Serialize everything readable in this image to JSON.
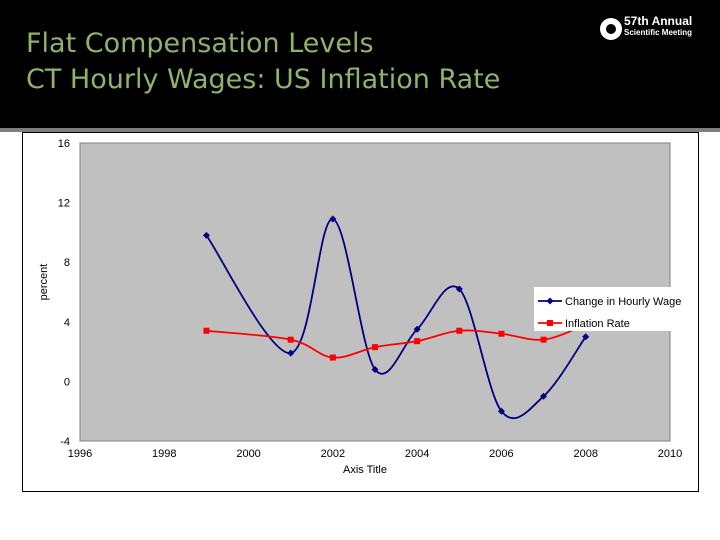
{
  "slide": {
    "title_line1": "Flat Compensation Levels",
    "title_line2": "CT Hourly Wages: US Inflation Rate",
    "logo_line1": "57th Annual",
    "logo_line2": "Scientific Meeting",
    "title_color": "#8fb36a",
    "header_color": "#000000"
  },
  "chart_data": {
    "type": "line",
    "title": "",
    "xlabel": "Axis Title",
    "ylabel": "percent",
    "xlim": [
      1996,
      2010
    ],
    "ylim": [
      -4,
      16
    ],
    "x_ticks": [
      "1996",
      "1998",
      "2000",
      "2002",
      "2004",
      "2006",
      "2008",
      "2010"
    ],
    "y_ticks": [
      "16",
      "12",
      "8",
      "4",
      "0",
      "-4"
    ],
    "grid": false,
    "plot_background": "#c0c0c0",
    "legend_position": "right",
    "series": [
      {
        "name": "Change in Hourly Wage",
        "color": "#000080",
        "marker": "diamond",
        "smooth": true,
        "x": [
          1999,
          2001,
          2002,
          2003,
          2004,
          2005,
          2006,
          2007,
          2008
        ],
        "y": [
          9.8,
          1.9,
          10.9,
          0.8,
          3.5,
          6.2,
          -2.0,
          -1.0,
          3.0
        ]
      },
      {
        "name": "Inflation Rate",
        "color": "#ff0000",
        "marker": "square",
        "smooth": true,
        "x": [
          1999,
          2001,
          2002,
          2003,
          2004,
          2005,
          2006,
          2007,
          2008
        ],
        "y": [
          3.4,
          2.8,
          1.6,
          2.3,
          2.7,
          3.4,
          3.2,
          2.8,
          3.8
        ]
      }
    ]
  }
}
